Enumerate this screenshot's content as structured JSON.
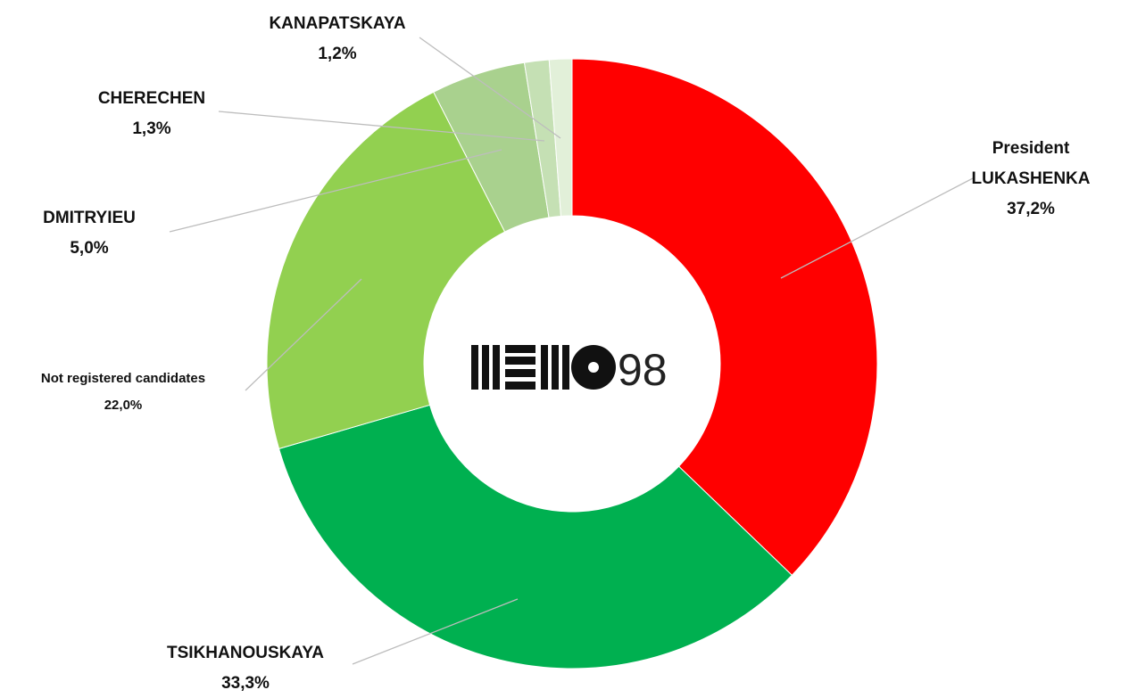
{
  "chart_data": {
    "type": "donut",
    "categories": [
      "President LUKASHENKA",
      "TSIKHANOUSKAYA",
      "Not registered candidates",
      "DMITRYIEU",
      "CHERECHEN",
      "KANAPATSKAYA"
    ],
    "values": [
      37.2,
      33.3,
      22.0,
      5.0,
      1.3,
      1.2
    ],
    "value_labels": [
      "37,2%",
      "33,3%",
      "22,0%",
      "5,0%",
      "1,3%",
      "1,2%"
    ],
    "colors": [
      "#ff0000",
      "#00b050",
      "#92d050",
      "#a9d18e",
      "#c5e0b4",
      "#e2f0d9"
    ],
    "center_label": "98"
  }
}
